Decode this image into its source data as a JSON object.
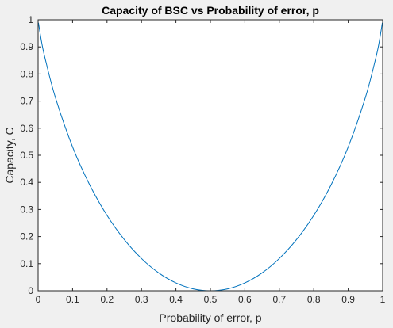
{
  "chart_data": {
    "type": "line",
    "title": "Capacity of BSC vs Probability of error, p",
    "xlabel": "Probability of error, p",
    "ylabel": "Capacity, C",
    "xlim": [
      0,
      1
    ],
    "ylim": [
      0,
      1
    ],
    "xticks": [
      0,
      0.1,
      0.2,
      0.3,
      0.4,
      0.5,
      0.6,
      0.7,
      0.8,
      0.9,
      1
    ],
    "yticks": [
      0,
      0.1,
      0.2,
      0.3,
      0.4,
      0.5,
      0.6,
      0.7,
      0.8,
      0.9,
      1
    ],
    "xtick_labels": [
      "0",
      "0.1",
      "0.2",
      "0.3",
      "0.4",
      "0.5",
      "0.6",
      "0.7",
      "0.8",
      "0.9",
      "1"
    ],
    "ytick_labels": [
      "0",
      "0.1",
      "0.2",
      "0.3",
      "0.4",
      "0.5",
      "0.6",
      "0.7",
      "0.8",
      "0.9",
      "1"
    ],
    "grid": false,
    "series": [
      {
        "color": "#0072bd",
        "x": [
          0.001,
          0.01,
          0.02,
          0.05,
          0.1,
          0.15,
          0.2,
          0.25,
          0.3,
          0.35,
          0.4,
          0.45,
          0.5,
          0.55,
          0.6,
          0.65,
          0.7,
          0.75,
          0.8,
          0.85,
          0.9,
          0.95,
          0.98,
          0.99,
          0.999
        ],
        "y": [
          0.989,
          0.919,
          0.859,
          0.714,
          0.531,
          0.39,
          0.278,
          0.189,
          0.119,
          0.066,
          0.029,
          0.007,
          0,
          0.007,
          0.029,
          0.066,
          0.119,
          0.189,
          0.278,
          0.39,
          0.531,
          0.714,
          0.859,
          0.919,
          0.989
        ]
      }
    ]
  },
  "colors": {
    "figure_background": "#f0f0f0",
    "axes_background": "#ffffff",
    "axis_color": "#262626",
    "line_color": "#0072bd"
  }
}
